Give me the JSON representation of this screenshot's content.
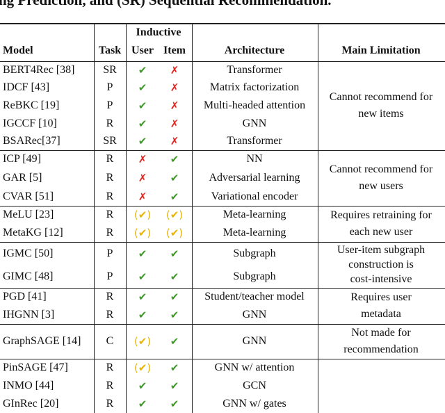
{
  "header": {
    "title": "ng Prediction, and (SR) Sequential Recommendation.",
    "columns": {
      "inductive": "Inductive",
      "model": "Model",
      "task": "Task",
      "user": "User",
      "item": "Item",
      "architecture": "Architecture",
      "limitation": "Main Limitation"
    }
  },
  "mark_colors": {
    "✔": "#3f9a2a",
    "✗": "#e0261f",
    "(✔)": "#e8b400"
  },
  "table": {
    "groups": [
      {
        "rows": [
          [
            "BERT4Rec [38]",
            "SR",
            "✔",
            "✗",
            "Transformer"
          ],
          [
            "IDCF [43]",
            "P",
            "✔",
            "✗",
            "Matrix factorization"
          ],
          [
            "ReBKC [19]",
            "P",
            "✔",
            "✗",
            "Multi-headed attention"
          ],
          [
            "IGCCF [10]",
            "R",
            "✔",
            "✗",
            "GNN"
          ],
          [
            "BSARec[37]",
            "SR",
            "✔",
            "✗",
            "Transformer"
          ]
        ],
        "limitation": [
          "Cannot recommend for",
          "new items"
        ]
      },
      {
        "rows": [
          [
            "ICP [49]",
            "R",
            "✗",
            "✔",
            "NN"
          ],
          [
            "GAR [5]",
            "R",
            "✗",
            "✔",
            "Adversarial learning"
          ],
          [
            "CVAR [51]",
            "R",
            "✗",
            "✔",
            "Variational encoder"
          ]
        ],
        "limitation": [
          "Cannot recommend for",
          "new users"
        ]
      },
      {
        "rows": [
          [
            "MeLU [23]",
            "R",
            "(✔)",
            "(✔)",
            "Meta-learning"
          ],
          [
            "MetaKG [12]",
            "R",
            "(✔)",
            "(✔)",
            "Meta-learning"
          ]
        ],
        "limitation": [
          "Requires retraining for",
          "each new user"
        ]
      },
      {
        "rows": [
          [
            "IGMC [50]",
            "P",
            "✔",
            "✔",
            "Subgraph"
          ],
          [
            "GIMC [48]",
            "P",
            "✔",
            "✔",
            "Subgraph"
          ]
        ],
        "limitation": [
          "User-item subgraph",
          "construction is",
          "cost-intensive"
        ]
      },
      {
        "rows": [
          [
            "PGD [41]",
            "R",
            "✔",
            "✔",
            "Student/teacher model"
          ],
          [
            "IHGNN [3]",
            "R",
            "✔",
            "✔",
            "GNN"
          ]
        ],
        "limitation": [
          "Requires user",
          "metadata"
        ]
      },
      {
        "rows": [
          [
            "GraphSAGE [14]",
            "C",
            "(✔)",
            "✔",
            "GNN"
          ]
        ],
        "limitation": [
          "Not made for",
          "recommendation"
        ]
      },
      {
        "rows": [
          [
            "PinSAGE [47]",
            "R",
            "(✔)",
            "✔",
            "GNN w/ attention"
          ],
          [
            "INMO [44]",
            "R",
            "✔",
            "✔",
            "GCN"
          ],
          [
            "GInRec [20]",
            "R",
            "✔",
            "✔",
            "GNN w/ gates"
          ]
        ]
      }
    ]
  }
}
